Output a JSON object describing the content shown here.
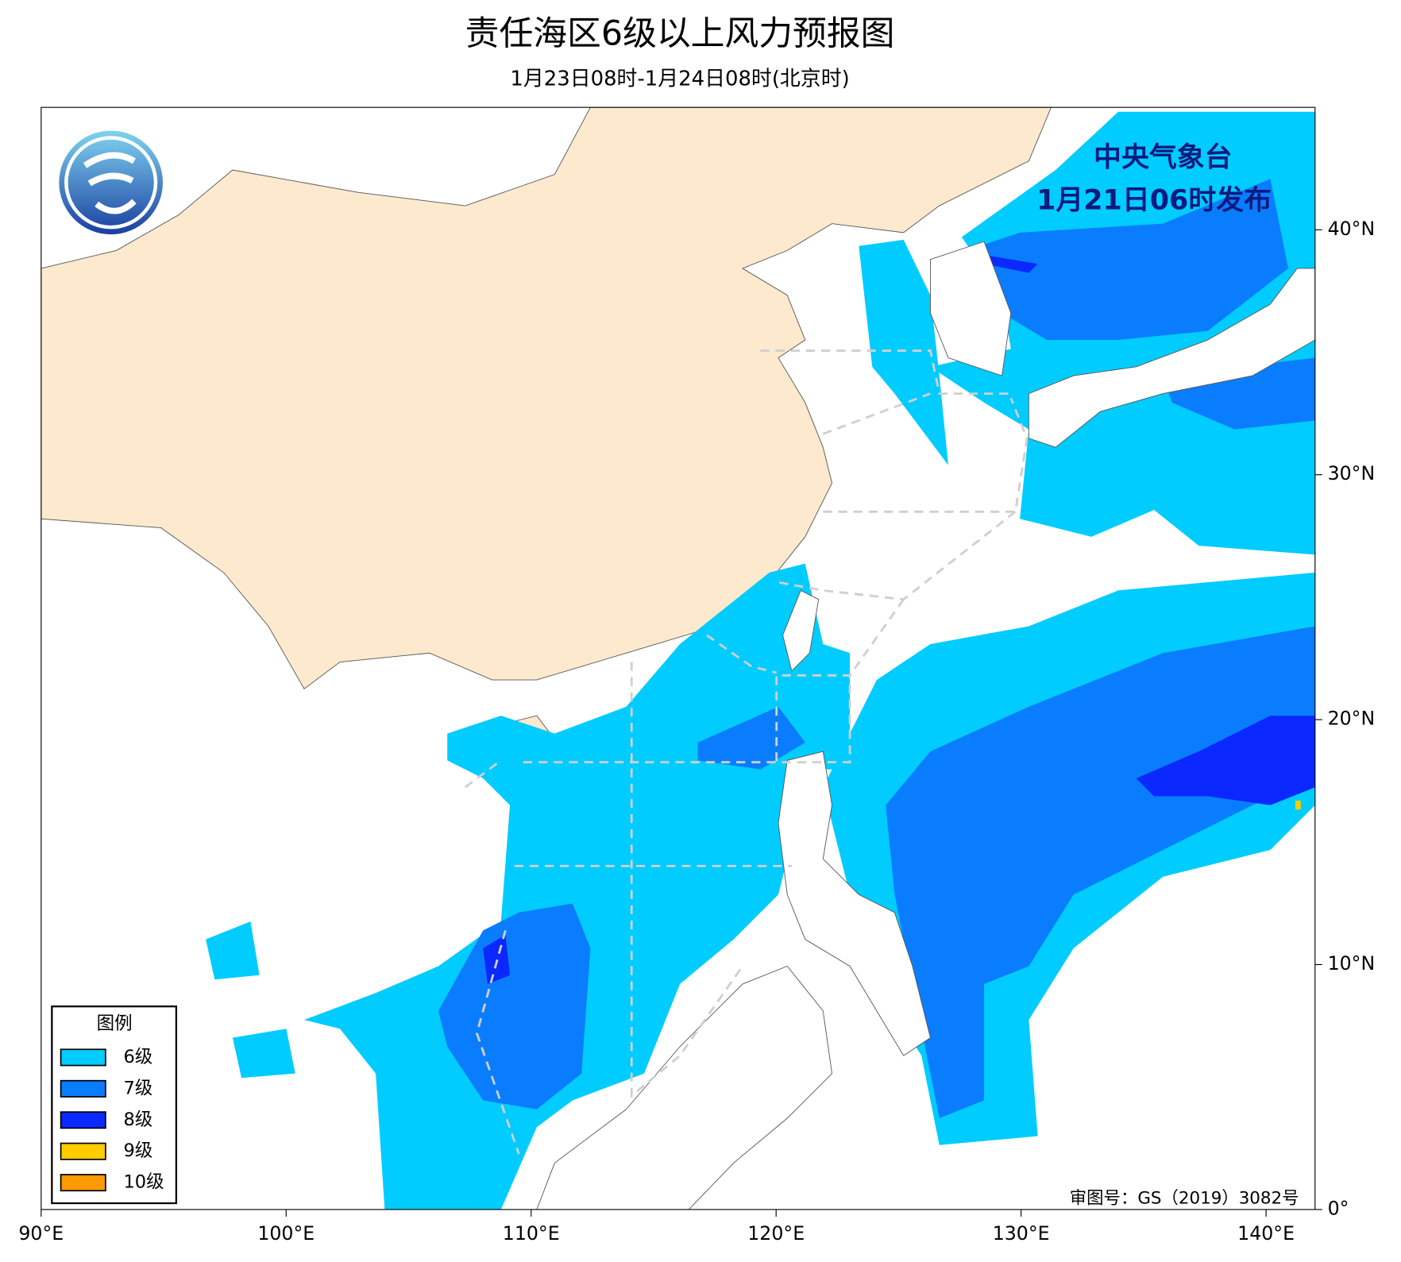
{
  "header": {
    "title": "责任海区6级以上风力预报图",
    "subtitle": "1月23日08时-1月24日08时(北京时)"
  },
  "issuer": {
    "name": "中央气象台",
    "time": "1月21日06时发布"
  },
  "map": {
    "xlim": [
      90,
      142
    ],
    "ylim": [
      0,
      45
    ],
    "xticks": [
      {
        "value": 90,
        "label": "90°E"
      },
      {
        "value": 100,
        "label": "100°E"
      },
      {
        "value": 110,
        "label": "110°E"
      },
      {
        "value": 120,
        "label": "120°E"
      },
      {
        "value": 130,
        "label": "130°E"
      },
      {
        "value": 140,
        "label": "140°E"
      }
    ],
    "yticks": [
      {
        "value": 0,
        "label": "0°"
      },
      {
        "value": 10,
        "label": "10°N"
      },
      {
        "value": 20,
        "label": "20°N"
      },
      {
        "value": 30,
        "label": "30°N"
      },
      {
        "value": 40,
        "label": "40°N"
      }
    ]
  },
  "legend": {
    "title": "图例",
    "items": [
      {
        "label": "6级",
        "color": "#00ccff"
      },
      {
        "label": "7级",
        "color": "#0a7dff"
      },
      {
        "label": "8级",
        "color": "#0a28ff"
      },
      {
        "label": "9级",
        "color": "#ffcc00"
      },
      {
        "label": "10级",
        "color": "#ff9900"
      }
    ]
  },
  "footer": "审图号：GS（2019）3082号"
}
